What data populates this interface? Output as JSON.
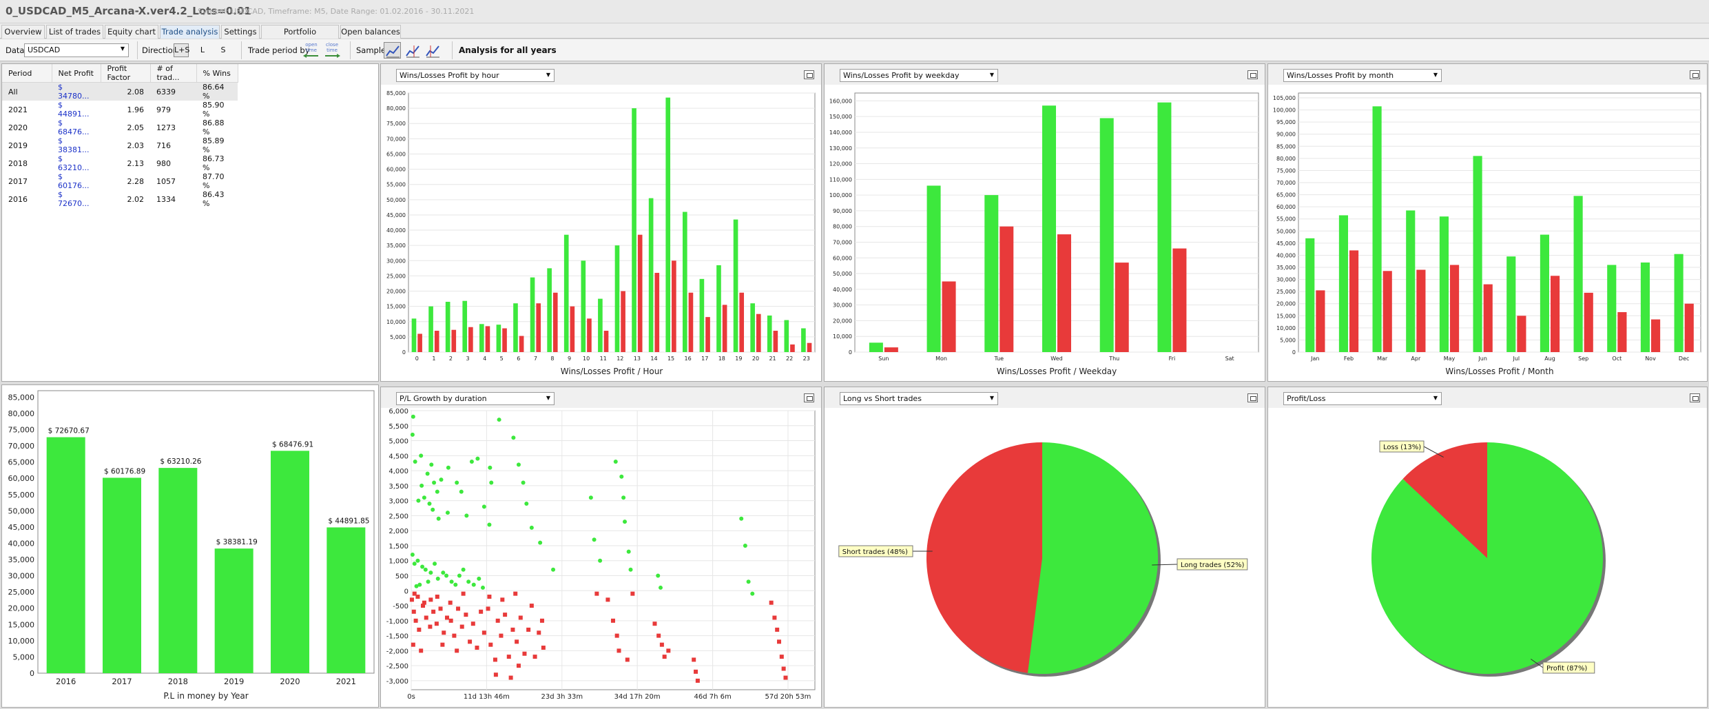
{
  "window": {
    "title": "0_USDCAD_M5_Arcana-X.ver4.2_Lots=0.01",
    "subtitle": "Symbol: USDCAD, Timeframe: M5, Date Range: 01.02.2016 - 30.11.2021"
  },
  "tabs": [
    {
      "label": "Overview"
    },
    {
      "label": "List of trades"
    },
    {
      "label": "Equity chart"
    },
    {
      "label": "Trade analysis",
      "active": true
    },
    {
      "label": "Settings"
    },
    {
      "label": "Portfolio correlation"
    },
    {
      "label": "Open balances"
    }
  ],
  "toolbar": {
    "data_label": "Data",
    "data_value": "USDCAD",
    "direction_label": "Direction",
    "directions": [
      "L+S",
      "L",
      "S"
    ],
    "direction_selected": "L+S",
    "period_label": "Trade period by",
    "period_open": {
      "line1": "open",
      "line2": "time"
    },
    "period_close": {
      "line1": "close",
      "line2": "time"
    },
    "sample_label": "Sample",
    "sample_icons": [
      "chart-sample-all-icon",
      "chart-sample-is-icon",
      "chart-sample-oos-icon"
    ],
    "analysis_label": "Analysis for all years"
  },
  "table": {
    "headers": [
      "Period",
      "Net Profit",
      "Profit Factor",
      "# of trad...",
      "% Wins"
    ],
    "rows": [
      {
        "period": "All",
        "net_profit": "$ 34780...",
        "pf": "2.08",
        "trades": "6339",
        "wins": "86.64 %"
      },
      {
        "period": "2021",
        "net_profit": "$ 44891...",
        "pf": "1.96",
        "trades": "979",
        "wins": "85.90 %"
      },
      {
        "period": "2020",
        "net_profit": "$ 68476...",
        "pf": "2.05",
        "trades": "1273",
        "wins": "86.88 %"
      },
      {
        "period": "2019",
        "net_profit": "$ 38381...",
        "pf": "2.03",
        "trades": "716",
        "wins": "85.89 %"
      },
      {
        "period": "2018",
        "net_profit": "$ 63210...",
        "pf": "2.13",
        "trades": "980",
        "wins": "86.73 %"
      },
      {
        "period": "2017",
        "net_profit": "$ 60176...",
        "pf": "2.28",
        "trades": "1057",
        "wins": "87.70 %"
      },
      {
        "period": "2016",
        "net_profit": "$ 72670...",
        "pf": "2.02",
        "trades": "1334",
        "wins": "86.43 %"
      }
    ]
  },
  "colors": {
    "win": "#3de83d",
    "loss": "#e83a3a",
    "grid": "#e6e6e6"
  },
  "chart_data": [
    {
      "id": "hour",
      "type": "bar",
      "selector": "Wins/Losses Profit by hour",
      "title": "Wins/Losses Profit / Hour",
      "categories": [
        "0",
        "1",
        "2",
        "3",
        "4",
        "5",
        "6",
        "7",
        "8",
        "9",
        "10",
        "11",
        "12",
        "13",
        "14",
        "15",
        "16",
        "17",
        "18",
        "19",
        "20",
        "21",
        "22",
        "23"
      ],
      "ylim": [
        0,
        85000
      ],
      "yticks": [
        0,
        5000,
        10000,
        15000,
        20000,
        25000,
        30000,
        35000,
        40000,
        45000,
        50000,
        55000,
        60000,
        65000,
        70000,
        75000,
        80000,
        85000
      ],
      "series": [
        {
          "values": [
            11000,
            15000,
            16500,
            16800,
            9200,
            9000,
            16000,
            24500,
            27500,
            38500,
            30000,
            17500,
            35000,
            80000,
            50500,
            83500,
            46000,
            24000,
            28500,
            43500,
            16000,
            12000,
            10500,
            7800
          ]
        },
        {
          "values": [
            6000,
            7000,
            7300,
            8200,
            8500,
            7800,
            5300,
            16000,
            19500,
            15000,
            11000,
            7000,
            20000,
            38500,
            26000,
            30000,
            19500,
            11500,
            15500,
            19500,
            12500,
            7000,
            2500,
            3000
          ]
        }
      ]
    },
    {
      "id": "weekday",
      "type": "bar",
      "selector": "Wins/Losses Profit by weekday",
      "title": "Wins/Losses Profit / Weekday",
      "categories": [
        "Sun",
        "Mon",
        "Tue",
        "Wed",
        "Thu",
        "Fri",
        "Sat"
      ],
      "ylim": [
        0,
        165000
      ],
      "yticks": [
        0,
        10000,
        20000,
        30000,
        40000,
        50000,
        60000,
        70000,
        80000,
        90000,
        100000,
        110000,
        120000,
        130000,
        140000,
        150000,
        160000
      ],
      "series": [
        {
          "values": [
            6000,
            106000,
            100000,
            157000,
            149000,
            159000,
            0
          ]
        },
        {
          "values": [
            3000,
            45000,
            80000,
            75000,
            57000,
            66000,
            0
          ]
        }
      ]
    },
    {
      "id": "month",
      "type": "bar",
      "selector": "Wins/Losses Profit by month",
      "title": "Wins/Losses Profit / Month",
      "categories": [
        "Jan",
        "Feb",
        "Mar",
        "Apr",
        "May",
        "Jun",
        "Jul",
        "Aug",
        "Sep",
        "Oct",
        "Nov",
        "Dec"
      ],
      "ylim": [
        0,
        107000
      ],
      "yticks": [
        0,
        5000,
        10000,
        15000,
        20000,
        25000,
        30000,
        35000,
        40000,
        45000,
        50000,
        55000,
        60000,
        65000,
        70000,
        75000,
        80000,
        85000,
        90000,
        95000,
        100000,
        105000
      ],
      "series": [
        {
          "values": [
            47000,
            56500,
            101500,
            58500,
            56000,
            81000,
            39500,
            48500,
            64500,
            36000,
            37000,
            40500
          ]
        },
        {
          "values": [
            25500,
            42000,
            33500,
            34000,
            36000,
            28000,
            15000,
            31500,
            24500,
            16500,
            13500,
            20000
          ]
        }
      ]
    },
    {
      "id": "year",
      "type": "bar",
      "title": "P.L in money by Year",
      "categories": [
        "2016",
        "2017",
        "2018",
        "2019",
        "2020",
        "2021"
      ],
      "ylim": [
        0,
        87000
      ],
      "yticks": [
        0,
        5000,
        10000,
        15000,
        20000,
        25000,
        30000,
        35000,
        40000,
        45000,
        50000,
        55000,
        60000,
        65000,
        70000,
        75000,
        80000,
        85000
      ],
      "values": [
        72670.67,
        60176.89,
        63210.26,
        38381.19,
        68476.91,
        44891.85
      ],
      "data_labels": [
        "$ 72670.67",
        "$ 60176.89",
        "$ 63210.26",
        "$ 38381.19",
        "$ 68476.91",
        "$ 44891.85"
      ]
    },
    {
      "id": "duration",
      "type": "scatter",
      "selector": "P/L Growth by duration",
      "x_tick_labels": [
        "0s",
        "11d 13h 46m",
        "23d 3h 33m",
        "34d 17h 20m",
        "46d 7h 6m",
        "57d 20h 53m"
      ],
      "x_ticks_days": [
        0,
        11.57,
        23.15,
        34.72,
        46.3,
        57.87
      ],
      "xlim_days": [
        0,
        62
      ],
      "ylim": [
        -3300,
        6000
      ],
      "yticks": [
        -3000,
        -2500,
        -2000,
        -1500,
        -1000,
        -500,
        0,
        500,
        1000,
        1500,
        2000,
        2500,
        3000,
        3500,
        4000,
        4500,
        5000,
        5500,
        6000
      ],
      "wins": [
        [
          0.3,
          5800
        ],
        [
          0.2,
          5200
        ],
        [
          0.6,
          4300
        ],
        [
          1.5,
          4500
        ],
        [
          1.6,
          3500
        ],
        [
          2.5,
          3900
        ],
        [
          3.1,
          4200
        ],
        [
          3.5,
          3600
        ],
        [
          4.0,
          3300
        ],
        [
          4.6,
          3700
        ],
        [
          5.7,
          4100
        ],
        [
          1.1,
          3000
        ],
        [
          2.0,
          3100
        ],
        [
          2.8,
          2900
        ],
        [
          3.3,
          2700
        ],
        [
          4.2,
          2400
        ],
        [
          5.6,
          2600
        ],
        [
          7.0,
          3600
        ],
        [
          7.7,
          3300
        ],
        [
          8.5,
          2500
        ],
        [
          9.3,
          4300
        ],
        [
          10.2,
          4400
        ],
        [
          11.2,
          2800
        ],
        [
          12.1,
          4100
        ],
        [
          13.5,
          5700
        ],
        [
          12.3,
          3600
        ],
        [
          12.0,
          2200
        ],
        [
          15.7,
          5100
        ],
        [
          16.5,
          4200
        ],
        [
          17.2,
          3600
        ],
        [
          17.7,
          2900
        ],
        [
          18.5,
          2100
        ],
        [
          19.8,
          1600
        ],
        [
          21.8,
          700
        ],
        [
          27.6,
          3100
        ],
        [
          28.1,
          1700
        ],
        [
          29.0,
          1000
        ],
        [
          31.4,
          4300
        ],
        [
          32.3,
          3800
        ],
        [
          32.6,
          3100
        ],
        [
          32.8,
          2300
        ],
        [
          33.4,
          1300
        ],
        [
          33.7,
          700
        ],
        [
          37.9,
          500
        ],
        [
          38.3,
          100
        ],
        [
          50.7,
          2400
        ],
        [
          51.3,
          1500
        ],
        [
          51.8,
          300
        ],
        [
          52.4,
          -100
        ],
        [
          0.2,
          1200
        ],
        [
          0.5,
          900
        ],
        [
          1.0,
          1000
        ],
        [
          1.7,
          800
        ],
        [
          2.2,
          700
        ],
        [
          3.0,
          600
        ],
        [
          3.6,
          900
        ],
        [
          4.1,
          400
        ],
        [
          4.9,
          600
        ],
        [
          5.4,
          500
        ],
        [
          6.2,
          300
        ],
        [
          6.8,
          200
        ],
        [
          7.4,
          500
        ],
        [
          8.0,
          700
        ],
        [
          8.8,
          300
        ],
        [
          9.6,
          200
        ],
        [
          10.4,
          400
        ],
        [
          11.0,
          100
        ],
        [
          1.3,
          200
        ],
        [
          2.6,
          300
        ],
        [
          0.8,
          150
        ]
      ],
      "losses": [
        [
          0.1,
          -300
        ],
        [
          0.4,
          -700
        ],
        [
          0.7,
          -1000
        ],
        [
          1.2,
          -1300
        ],
        [
          1.8,
          -500
        ],
        [
          2.3,
          -900
        ],
        [
          2.9,
          -1200
        ],
        [
          3.4,
          -700
        ],
        [
          3.9,
          -1100
        ],
        [
          4.5,
          -600
        ],
        [
          5.0,
          -1400
        ],
        [
          5.5,
          -900
        ],
        [
          6.1,
          -1000
        ],
        [
          6.6,
          -1500
        ],
        [
          7.2,
          -600
        ],
        [
          7.8,
          -1200
        ],
        [
          8.4,
          -800
        ],
        [
          9.0,
          -1700
        ],
        [
          9.5,
          -1100
        ],
        [
          10.1,
          -1900
        ],
        [
          10.7,
          -700
        ],
        [
          11.2,
          -1400
        ],
        [
          11.8,
          -600
        ],
        [
          12.2,
          -1800
        ],
        [
          12.9,
          -2300
        ],
        [
          13.3,
          -1000
        ],
        [
          13.8,
          -1500
        ],
        [
          14.4,
          -800
        ],
        [
          15.0,
          -2200
        ],
        [
          15.6,
          -1300
        ],
        [
          16.2,
          -1700
        ],
        [
          16.8,
          -900
        ],
        [
          17.4,
          -2100
        ],
        [
          18.0,
          -1300
        ],
        [
          18.5,
          -500
        ],
        [
          19.0,
          -2200
        ],
        [
          19.6,
          -1400
        ],
        [
          20.1,
          -1000
        ],
        [
          20.3,
          -1900
        ],
        [
          0.3,
          -1800
        ],
        [
          1.5,
          -2000
        ],
        [
          4.8,
          -1800
        ],
        [
          7.0,
          -2000
        ],
        [
          13.0,
          -2800
        ],
        [
          15.3,
          -2900
        ],
        [
          16.5,
          -2500
        ],
        [
          28.5,
          -100
        ],
        [
          30.2,
          -300
        ],
        [
          31.0,
          -1000
        ],
        [
          31.6,
          -1500
        ],
        [
          31.9,
          -2000
        ],
        [
          33.2,
          -2300
        ],
        [
          34.0,
          -100
        ],
        [
          37.4,
          -1100
        ],
        [
          38.0,
          -1500
        ],
        [
          38.5,
          -1800
        ],
        [
          38.9,
          -2200
        ],
        [
          39.5,
          -2000
        ],
        [
          43.4,
          -2300
        ],
        [
          43.7,
          -2700
        ],
        [
          44.0,
          -3000
        ],
        [
          55.3,
          -400
        ],
        [
          55.8,
          -900
        ],
        [
          56.2,
          -1300
        ],
        [
          56.5,
          -1700
        ],
        [
          56.9,
          -2200
        ],
        [
          57.2,
          -2600
        ],
        [
          57.5,
          -2900
        ],
        [
          0.5,
          -100
        ],
        [
          1.0,
          -200
        ],
        [
          2.0,
          -400
        ],
        [
          3.0,
          -300
        ],
        [
          4.0,
          -200
        ],
        [
          6.0,
          -400
        ],
        [
          8.0,
          -100
        ],
        [
          12.0,
          -200
        ],
        [
          14.0,
          -300
        ],
        [
          16.0,
          -100
        ]
      ]
    },
    {
      "id": "longshort",
      "type": "pie",
      "selector": "Long vs Short trades",
      "slices": [
        {
          "label": "Long trades (52%)",
          "value": 52
        },
        {
          "label": "Short trades (48%)",
          "value": 48
        }
      ]
    },
    {
      "id": "profitloss",
      "type": "pie",
      "selector": "Profit/Loss",
      "slices": [
        {
          "label": "Profit (87%)",
          "value": 87
        },
        {
          "label": "Loss (13%)",
          "value": 13
        }
      ]
    }
  ]
}
